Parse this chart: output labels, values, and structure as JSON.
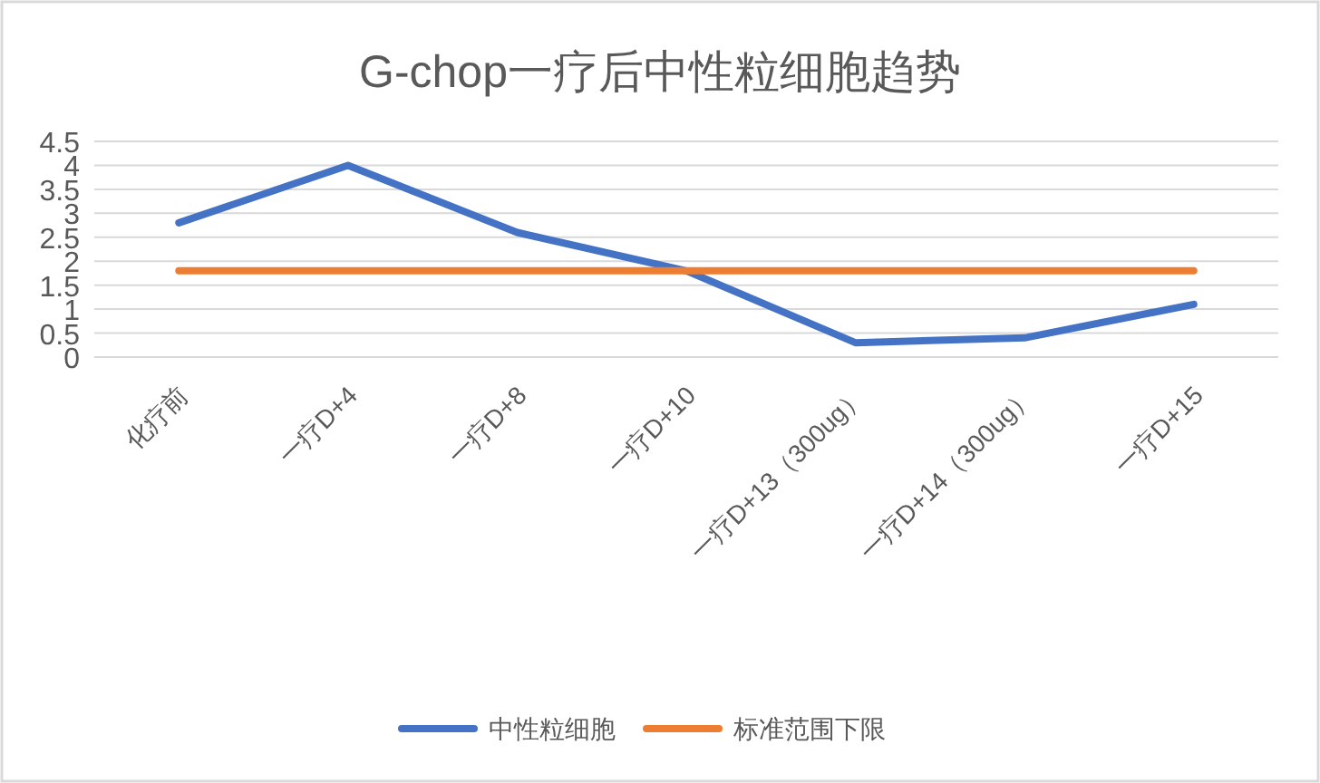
{
  "chart_data": {
    "type": "line",
    "title": "G-chop一疗后中性粒细胞趋势",
    "categories": [
      "化疗前",
      "一疗D+4",
      "一疗D+8",
      "一疗D+10",
      "一疗D+13（300ug）",
      "一疗D+14（300ug）",
      "一疗D+15"
    ],
    "series": [
      {
        "name": "中性粒细胞",
        "color": "#4472c4",
        "values": [
          2.8,
          4.0,
          2.6,
          1.8,
          0.3,
          0.4,
          1.1
        ]
      },
      {
        "name": "标准范围下限",
        "color": "#ed7d31",
        "values": [
          1.8,
          1.8,
          1.8,
          1.8,
          1.8,
          1.8,
          1.8
        ]
      }
    ],
    "ylim": [
      0,
      4.5
    ],
    "yticks": [
      0,
      0.5,
      1,
      1.5,
      2,
      2.5,
      3,
      3.5,
      4,
      4.5
    ],
    "grid": "y",
    "legend": "bottom",
    "marker": "none",
    "line_style": "solid"
  }
}
